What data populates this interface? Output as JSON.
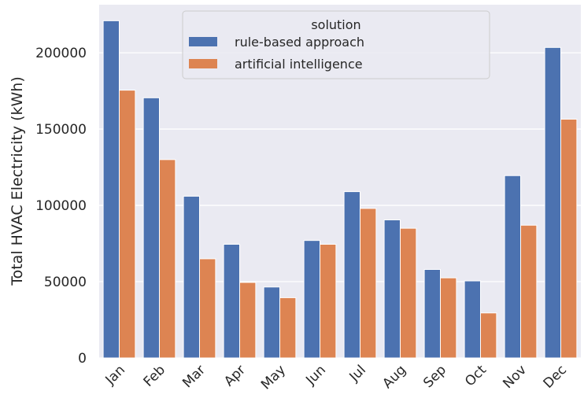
{
  "chart_data": {
    "type": "bar",
    "categories": [
      "Jan",
      "Feb",
      "Mar",
      "Apr",
      "May",
      "Jun",
      "Jul",
      "Aug",
      "Sep",
      "Oct",
      "Nov",
      "Dec"
    ],
    "series": [
      {
        "name": "rule-based approach",
        "color": "#4c72b0",
        "values": [
          221000,
          170500,
          106000,
          74500,
          46500,
          77000,
          109000,
          90500,
          58000,
          50500,
          119500,
          203500
        ]
      },
      {
        "name": "artificial intelligence",
        "color": "#dd8452",
        "values": [
          175500,
          130000,
          65000,
          49500,
          39500,
          74500,
          98000,
          85000,
          52500,
          29500,
          87000,
          156500
        ]
      }
    ],
    "xlabel": "",
    "ylabel": "Total HVAC Electricity (kWh)",
    "ylim": [
      0,
      231500
    ],
    "yticks": [
      0,
      50000,
      100000,
      150000,
      200000
    ],
    "legend": {
      "title": "solution",
      "position": "top-center"
    },
    "grid": true,
    "background": "#eaeaf2"
  }
}
